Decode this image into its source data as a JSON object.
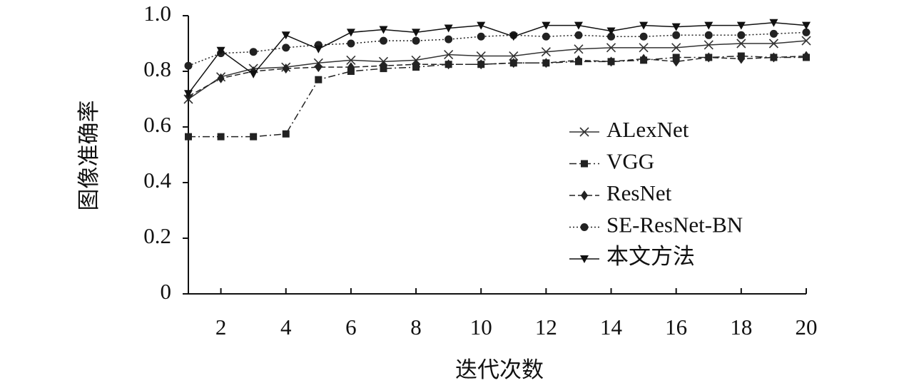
{
  "chart_data": {
    "type": "line",
    "x_label": "迭代次数",
    "y_label": "图像准确率",
    "x": [
      1,
      2,
      3,
      4,
      5,
      6,
      7,
      8,
      9,
      10,
      11,
      12,
      13,
      14,
      15,
      16,
      17,
      18,
      19,
      20
    ],
    "xlim": [
      1,
      20
    ],
    "xticks": [
      2,
      4,
      6,
      8,
      10,
      12,
      14,
      16,
      18,
      20
    ],
    "ylim": [
      0,
      1
    ],
    "yticks": [
      0,
      0.2,
      0.4,
      0.6,
      0.8,
      {
        "value": 1,
        "label": "1.0"
      }
    ],
    "legend": "center right",
    "series": [
      {
        "name": "ALexNet",
        "color": "#333333",
        "marker": "x",
        "dash": "solid",
        "values": [
          0.7,
          0.78,
          0.81,
          0.815,
          0.83,
          0.84,
          0.835,
          0.84,
          0.86,
          0.855,
          0.855,
          0.87,
          0.88,
          0.885,
          0.885,
          0.885,
          0.895,
          0.9,
          0.9,
          0.91
        ]
      },
      {
        "name": "VGG",
        "color": "#222222",
        "marker": "square",
        "dash": "dashdot",
        "values": [
          0.565,
          0.565,
          0.565,
          0.575,
          0.77,
          0.8,
          0.81,
          0.815,
          0.825,
          0.825,
          0.83,
          0.83,
          0.835,
          0.835,
          0.84,
          0.85,
          0.85,
          0.855,
          0.85,
          0.85
        ]
      },
      {
        "name": "ResNet",
        "color": "#222222",
        "marker": "diamond",
        "dash": "dashed",
        "values": [
          0.71,
          0.775,
          0.8,
          0.81,
          0.815,
          0.815,
          0.82,
          0.825,
          0.825,
          0.825,
          0.83,
          0.83,
          0.84,
          0.835,
          0.845,
          0.835,
          0.85,
          0.845,
          0.85,
          0.855
        ]
      },
      {
        "name": "SE-ResNet-BN",
        "color": "#222222",
        "marker": "circle",
        "dash": "dotted",
        "values": [
          0.82,
          0.865,
          0.87,
          0.885,
          0.895,
          0.9,
          0.91,
          0.91,
          0.915,
          0.925,
          0.93,
          0.925,
          0.93,
          0.925,
          0.925,
          0.93,
          0.93,
          0.93,
          0.935,
          0.94
        ]
      },
      {
        "name": "本文方法",
        "color": "#111111",
        "marker": "triangle-down",
        "dash": "solid",
        "values": [
          0.72,
          0.875,
          0.79,
          0.93,
          0.88,
          0.94,
          0.95,
          0.94,
          0.955,
          0.965,
          0.925,
          0.965,
          0.965,
          0.945,
          0.965,
          0.96,
          0.965,
          0.965,
          0.975,
          0.965
        ]
      }
    ]
  }
}
